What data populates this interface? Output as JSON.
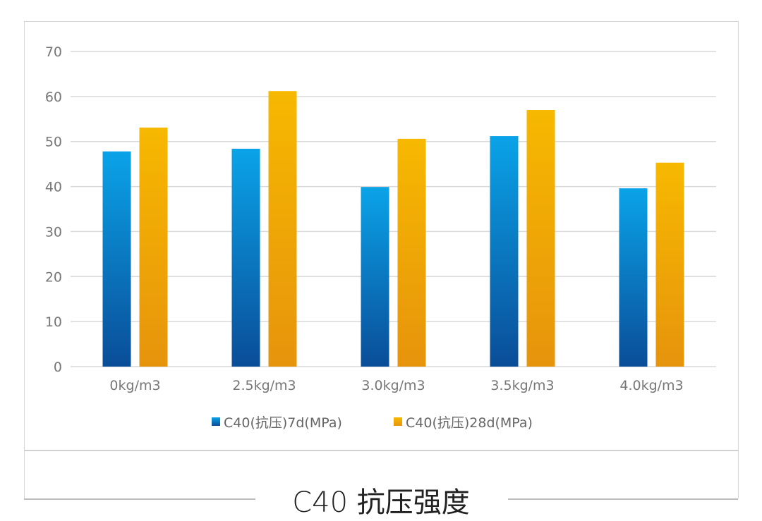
{
  "chart_data": {
    "type": "bar",
    "title": "C40 抗压强度",
    "xlabel": "",
    "ylabel": "",
    "ylim": [
      0,
      70
    ],
    "yticks": [
      "0",
      "10",
      "20",
      "30",
      "40",
      "50",
      "60",
      "70"
    ],
    "grid": true,
    "legend_position": "bottom",
    "categories": [
      "0kg/m3",
      "2.5kg/m3",
      "3.0kg/m3",
      "3.5kg/m3",
      "4.0kg/m3"
    ],
    "series": [
      {
        "name": "C40(抗压)7d(MPa)",
        "values": [
          47.8,
          48.4,
          39.9,
          51.2,
          39.6
        ],
        "color_top": "#0aa3e8",
        "color_bottom": "#0a4d98"
      },
      {
        "name": "C40(抗压)28d(MPa)",
        "values": [
          53.1,
          61.2,
          50.6,
          57.0,
          45.3
        ],
        "color_top": "#f7b800",
        "color_bottom": "#e6940c"
      }
    ]
  }
}
